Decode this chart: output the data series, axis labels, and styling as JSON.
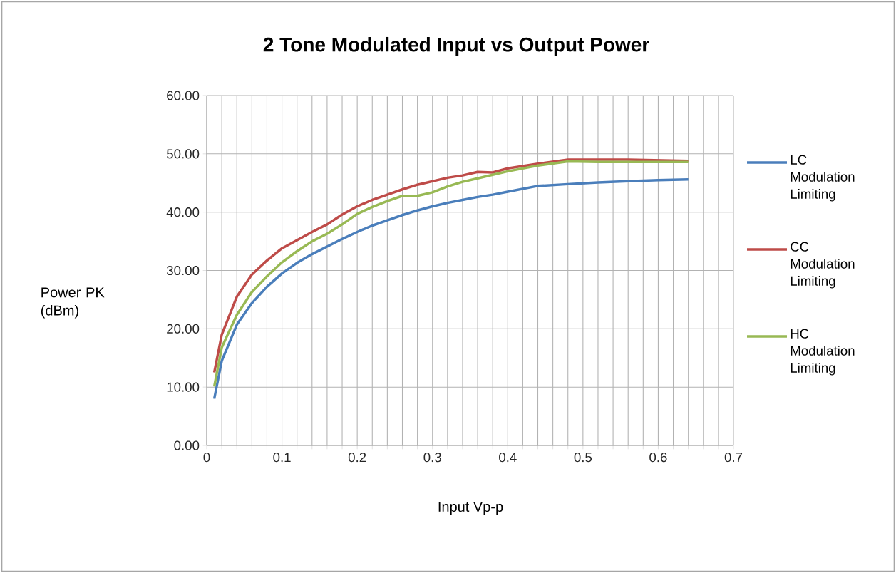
{
  "chart_data": {
    "type": "line",
    "title": "2 Tone Modulated Input vs Output Power",
    "xlabel": "Input Vp-p",
    "ylabel": "Power PK (dBm)",
    "x": [
      0.01,
      0.02,
      0.04,
      0.06,
      0.08,
      0.1,
      0.12,
      0.14,
      0.16,
      0.18,
      0.2,
      0.22,
      0.24,
      0.26,
      0.28,
      0.3,
      0.32,
      0.34,
      0.36,
      0.38,
      0.4,
      0.44,
      0.48,
      0.52,
      0.56,
      0.6,
      0.64
    ],
    "series": [
      {
        "name": "LC Modulation Limiting",
        "color": "#4a7ebb",
        "values": [
          8.0,
          14.5,
          20.7,
          24.4,
          27.2,
          29.5,
          31.3,
          32.8,
          34.1,
          35.4,
          36.6,
          37.7,
          38.6,
          39.5,
          40.3,
          41.0,
          41.6,
          42.1,
          42.6,
          43.0,
          43.5,
          44.5,
          44.8,
          45.1,
          45.3,
          45.5,
          45.6
        ]
      },
      {
        "name": "CC Modulation Limiting",
        "color": "#be4b48",
        "values": [
          12.5,
          19.0,
          25.5,
          29.3,
          31.7,
          33.8,
          35.2,
          36.6,
          37.9,
          39.6,
          41.0,
          42.1,
          43.0,
          43.9,
          44.7,
          45.3,
          45.9,
          46.3,
          46.9,
          46.8,
          47.5,
          48.3,
          49.0,
          49.0,
          49.0,
          48.9,
          48.8
        ]
      },
      {
        "name": "HC Modulation Limiting",
        "color": "#98b954",
        "values": [
          10.1,
          16.8,
          22.4,
          26.3,
          29.0,
          31.4,
          33.3,
          35.0,
          36.3,
          37.9,
          39.7,
          40.9,
          41.9,
          42.8,
          42.8,
          43.4,
          44.4,
          45.2,
          45.8,
          46.4,
          47.0,
          48.0,
          48.7,
          48.6,
          48.6,
          48.6,
          48.6
        ]
      }
    ],
    "xlim": [
      0,
      0.7
    ],
    "ylim": [
      0,
      60
    ],
    "xticks": [
      0,
      {
        "value": 0.02,
        "label": null
      },
      {
        "value": 0.04,
        "label": null
      },
      {
        "value": 0.06,
        "label": null
      },
      {
        "value": 0.08,
        "label": null
      },
      0.1,
      {
        "value": 0.12,
        "label": null
      },
      {
        "value": 0.14,
        "label": null
      },
      {
        "value": 0.16,
        "label": null
      },
      {
        "value": 0.18,
        "label": null
      },
      0.2,
      {
        "value": 0.22,
        "label": null
      },
      {
        "value": 0.24,
        "label": null
      },
      {
        "value": 0.26,
        "label": null
      },
      {
        "value": 0.28,
        "label": null
      },
      0.3,
      {
        "value": 0.32,
        "label": null
      },
      {
        "value": 0.34,
        "label": null
      },
      {
        "value": 0.36,
        "label": null
      },
      {
        "value": 0.38,
        "label": null
      },
      0.4,
      {
        "value": 0.42,
        "label": null
      },
      {
        "value": 0.44,
        "label": null
      },
      {
        "value": 0.46,
        "label": null
      },
      {
        "value": 0.48,
        "label": null
      },
      0.5,
      {
        "value": 0.52,
        "label": null
      },
      {
        "value": 0.54,
        "label": null
      },
      {
        "value": 0.56,
        "label": null
      },
      {
        "value": 0.58,
        "label": null
      },
      0.6,
      {
        "value": 0.62,
        "label": null
      },
      {
        "value": 0.64,
        "label": null
      },
      {
        "value": 0.66,
        "label": null
      },
      {
        "value": 0.68,
        "label": null
      },
      0.7
    ],
    "yticks": [
      {
        "value": 0,
        "label": "0.00"
      },
      {
        "value": 10,
        "label": "10.00"
      },
      {
        "value": 20,
        "label": "20.00"
      },
      {
        "value": 30,
        "label": "30.00"
      },
      {
        "value": 40,
        "label": "40.00"
      },
      {
        "value": 50,
        "label": "50.00"
      },
      {
        "value": 60,
        "label": "60.00"
      }
    ],
    "grid": true,
    "legend": "right",
    "marker": "none",
    "line_style": "solid"
  }
}
